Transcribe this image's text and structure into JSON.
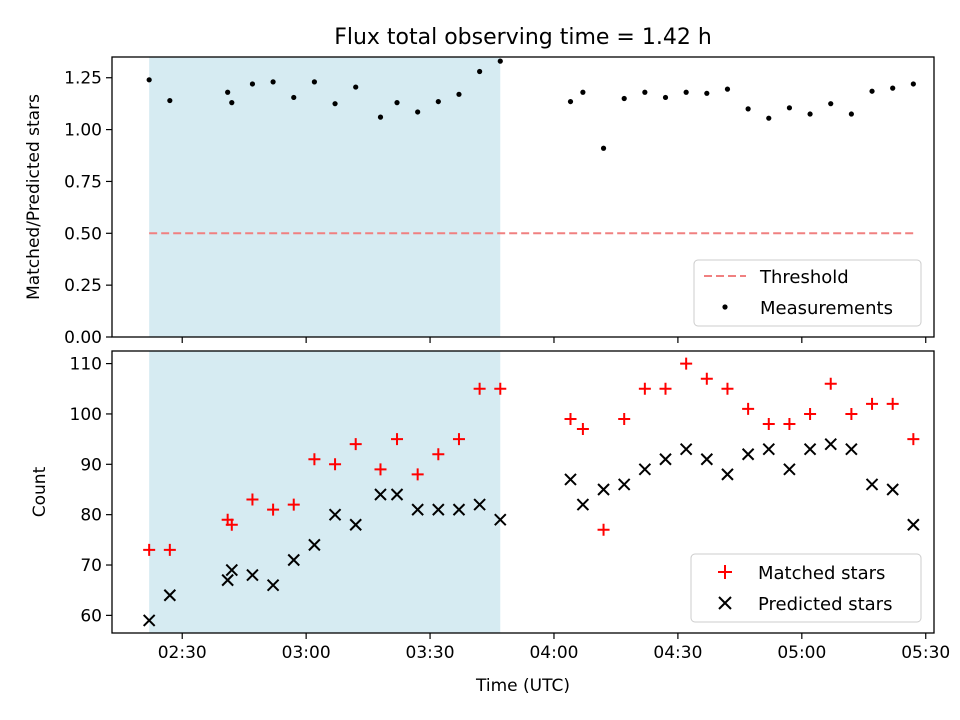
{
  "chart_data": [
    {
      "type": "scatter",
      "panel": "top",
      "title": "Flux total observing time = 1.42 h",
      "xlabel": "",
      "ylabel": "Matched/Predicted stars",
      "ylim": [
        0,
        1.35
      ],
      "yticks": [
        "0.00",
        "0.25",
        "0.50",
        "0.75",
        "1.00",
        "1.25"
      ],
      "shaded_region": {
        "x_start": "02:22",
        "x_end": "03:47",
        "color": "#add8e6"
      },
      "threshold": {
        "name": "Threshold",
        "value": 0.5,
        "x_start": "02:22",
        "x_end": "05:27",
        "color": "#f08080"
      },
      "series": [
        {
          "name": "Measurements",
          "color": "#000000",
          "x": [
            "02:22",
            "02:27",
            "02:41",
            "02:42",
            "02:47",
            "02:52",
            "02:57",
            "03:02",
            "03:07",
            "03:12",
            "03:18",
            "03:22",
            "03:27",
            "03:32",
            "03:37",
            "03:42",
            "03:47",
            "04:04",
            "04:07",
            "04:12",
            "04:17",
            "04:22",
            "04:27",
            "04:32",
            "04:37",
            "04:42",
            "04:47",
            "04:52",
            "04:57",
            "05:02",
            "05:07",
            "05:12",
            "05:17",
            "05:22",
            "05:27"
          ],
          "values": [
            1.24,
            1.14,
            1.18,
            1.13,
            1.22,
            1.23,
            1.155,
            1.23,
            1.125,
            1.205,
            1.06,
            1.13,
            1.085,
            1.135,
            1.17,
            1.28,
            1.33,
            1.135,
            1.18,
            0.91,
            1.15,
            1.18,
            1.155,
            1.18,
            1.175,
            1.195,
            1.1,
            1.055,
            1.105,
            1.075,
            1.125,
            1.075,
            1.185,
            1.2,
            1.22
          ]
        }
      ],
      "legend": {
        "placement": "lower right"
      }
    },
    {
      "type": "scatter",
      "panel": "bottom",
      "title": "",
      "xlabel": "Time (UTC)",
      "ylabel": "Count",
      "ylim": [
        56.5,
        112.5
      ],
      "yticks": [
        "60",
        "70",
        "80",
        "90",
        "100",
        "110"
      ],
      "xticks": [
        "02:30",
        "03:00",
        "03:30",
        "04:00",
        "04:30",
        "05:00",
        "05:30"
      ],
      "xlim": [
        "02:13",
        "05:32"
      ],
      "shaded_region": {
        "x_start": "02:22",
        "x_end": "03:47",
        "color": "#add8e6"
      },
      "series": [
        {
          "name": "Matched stars",
          "color": "#ff0000",
          "marker": "plus",
          "x": [
            "02:22",
            "02:27",
            "02:41",
            "02:42",
            "02:47",
            "02:52",
            "02:57",
            "03:02",
            "03:07",
            "03:12",
            "03:18",
            "03:22",
            "03:27",
            "03:32",
            "03:37",
            "03:42",
            "03:47",
            "04:04",
            "04:07",
            "04:12",
            "04:17",
            "04:22",
            "04:27",
            "04:32",
            "04:37",
            "04:42",
            "04:47",
            "04:52",
            "04:57",
            "05:02",
            "05:07",
            "05:12",
            "05:17",
            "05:22",
            "05:27"
          ],
          "values": [
            73,
            73,
            79,
            78,
            83,
            81,
            82,
            91,
            90,
            94,
            89,
            95,
            88,
            92,
            95,
            105,
            105,
            99,
            97,
            77,
            99,
            105,
            105,
            110,
            107,
            105,
            101,
            98,
            98,
            100,
            106,
            100,
            102,
            102,
            95
          ]
        },
        {
          "name": "Predicted stars",
          "color": "#000000",
          "marker": "x",
          "x": [
            "02:22",
            "02:27",
            "02:41",
            "02:42",
            "02:47",
            "02:52",
            "02:57",
            "03:02",
            "03:07",
            "03:12",
            "03:18",
            "03:22",
            "03:27",
            "03:32",
            "03:37",
            "03:42",
            "03:47",
            "04:04",
            "04:07",
            "04:12",
            "04:17",
            "04:22",
            "04:27",
            "04:32",
            "04:37",
            "04:42",
            "04:47",
            "04:52",
            "04:57",
            "05:02",
            "05:07",
            "05:12",
            "05:17",
            "05:22",
            "05:27"
          ],
          "values": [
            59,
            64,
            67,
            69,
            68,
            66,
            71,
            74,
            80,
            78,
            84,
            84,
            81,
            81,
            81,
            82,
            79,
            87,
            82,
            85,
            86,
            89,
            91,
            93,
            91,
            88,
            92,
            93,
            89,
            93,
            94,
            93,
            86,
            85,
            78
          ]
        }
      ],
      "legend": {
        "placement": "lower right"
      }
    }
  ]
}
